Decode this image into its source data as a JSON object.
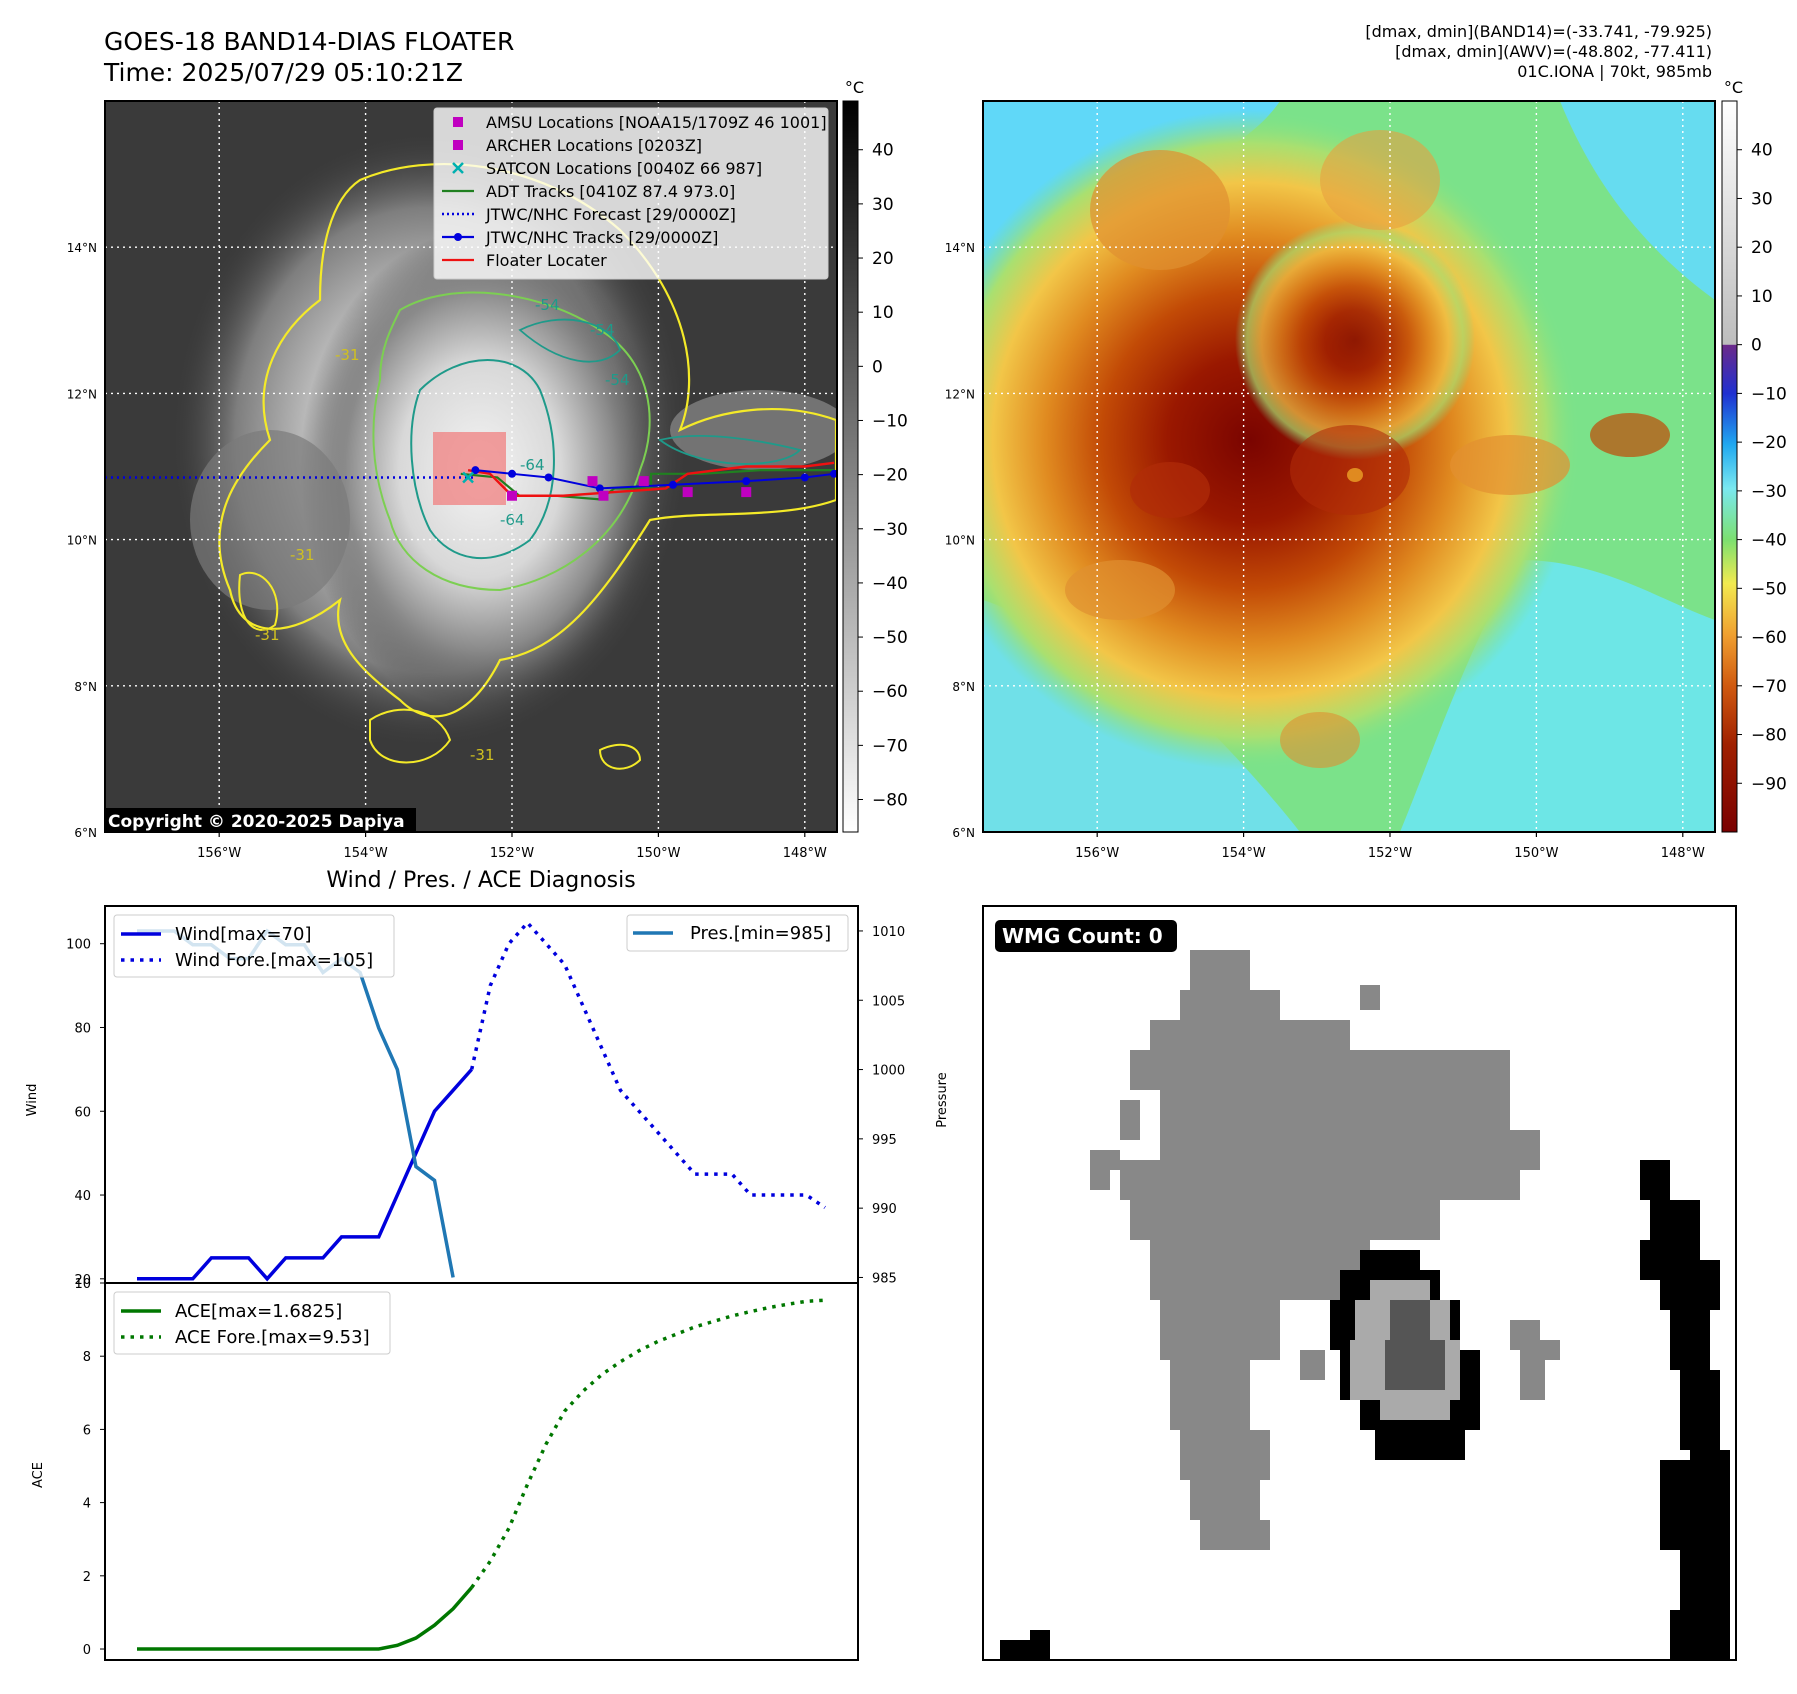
{
  "header": {
    "title": "GOES-18 BAND14-DIAS FLOATER",
    "time": "Time: 2025/07/29 05:10:21Z",
    "stat_band14": "[dmax, dmin](BAND14)=(-33.741, -79.925)",
    "stat_awv": "[dmax, dmin](AWV)=(-48.802, -77.411)",
    "storm": "01C.IONA | 70kt, 985mb"
  },
  "map": {
    "lon_ticks": [
      "156°W",
      "154°W",
      "152°W",
      "150°W",
      "148°W"
    ],
    "lat_ticks": [
      "14°N",
      "12°N",
      "10°N",
      "8°N",
      "6°N"
    ],
    "lon_values": [
      -156,
      -154,
      -152,
      -150,
      -148
    ],
    "lat_values": [
      14,
      12,
      10,
      8,
      6
    ],
    "lon_range": [
      -157.56,
      -147.56
    ],
    "lat_range": [
      6,
      16
    ],
    "copyright": "Copyright © 2020-2025 Dapiya",
    "contour_labels": [
      "-31",
      "-31",
      "-31",
      "-31",
      "-54",
      "-54",
      "-54",
      "-64",
      "-64"
    ],
    "center": {
      "lon": -152.5,
      "lat": 10.85
    },
    "colors": {
      "ir_background": "#3a3a3a",
      "contour_31": "#f4ea28",
      "contour_54": "#7ccf52",
      "contour_64": "#1f9a8a",
      "floater_box": "#f08080"
    }
  },
  "legend": {
    "items": [
      {
        "label": "AMSU Locations [NOAA15/1709Z 46 1001]",
        "marker": "square",
        "color": "#c000c0"
      },
      {
        "label": "ARCHER Locations [0203Z]",
        "marker": "square",
        "color": "#c000c0"
      },
      {
        "label": "SATCON Locations [0040Z 66 987]",
        "marker": "x",
        "color": "#00b0b0"
      },
      {
        "label": "ADT Tracks [0410Z 87.4 973.0]",
        "marker": "line",
        "color": "#208020"
      },
      {
        "label": "JTWC/NHC Forecast [29/0000Z]",
        "marker": "dotted",
        "color": "#0000dd"
      },
      {
        "label": "JTWC/NHC Tracks [29/0000Z]",
        "marker": "line-dot",
        "color": "#0000dd"
      },
      {
        "label": "Floater Locater",
        "marker": "line",
        "color": "#ee1111"
      }
    ]
  },
  "tracks": {
    "jtwc_forecast": [
      [
        -157.56,
        10.85
      ],
      [
        -152.5,
        10.85
      ]
    ],
    "jtwc_track": [
      [
        -152.5,
        10.95
      ],
      [
        -152.0,
        10.9
      ],
      [
        -151.5,
        10.85
      ],
      [
        -150.8,
        10.7
      ],
      [
        -149.8,
        10.75
      ],
      [
        -148.8,
        10.8
      ],
      [
        -148.0,
        10.85
      ],
      [
        -147.6,
        10.9
      ]
    ],
    "adt": [
      [
        -152.7,
        10.9
      ],
      [
        -152.2,
        10.85
      ],
      [
        -151.9,
        10.6
      ],
      [
        -151.4,
        10.6
      ],
      [
        -150.8,
        10.55
      ],
      [
        -150.6,
        10.7
      ],
      [
        -150.1,
        10.7
      ],
      [
        -150.1,
        10.9
      ],
      [
        -149.4,
        10.9
      ],
      [
        -148.6,
        10.95
      ],
      [
        -147.6,
        10.95
      ]
    ],
    "floater": [
      [
        -152.6,
        10.95
      ],
      [
        -152.3,
        10.9
      ],
      [
        -152.0,
        10.6
      ],
      [
        -151.3,
        10.6
      ],
      [
        -150.6,
        10.65
      ],
      [
        -149.9,
        10.7
      ],
      [
        -149.6,
        10.9
      ],
      [
        -148.8,
        11.0
      ],
      [
        -148.0,
        11.0
      ],
      [
        -147.6,
        11.05
      ]
    ],
    "amsu": [
      [
        -152.0,
        10.6
      ],
      [
        -150.9,
        10.8
      ],
      [
        -150.75,
        10.6
      ],
      [
        -150.2,
        10.8
      ],
      [
        -149.6,
        10.65
      ],
      [
        -148.8,
        10.65
      ]
    ],
    "satcon": [
      [
        -152.6,
        10.85
      ]
    ]
  },
  "colorbar_ir": {
    "unit": "°C",
    "ticks": [
      "40",
      "30",
      "20",
      "10",
      "0",
      "−10",
      "−20",
      "−30",
      "−40",
      "−50",
      "−60",
      "−70",
      "−80"
    ],
    "values": [
      40,
      30,
      20,
      10,
      0,
      -10,
      -20,
      -30,
      -40,
      -50,
      -60,
      -70,
      -80
    ],
    "range": [
      -86,
      49
    ]
  },
  "colorbar_dias": {
    "unit": "°C",
    "ticks": [
      "40",
      "30",
      "20",
      "10",
      "0",
      "−10",
      "−20",
      "−30",
      "−40",
      "−50",
      "−60",
      "−70",
      "−80",
      "−90"
    ],
    "values": [
      40,
      30,
      20,
      10,
      0,
      -10,
      -20,
      -30,
      -40,
      -50,
      -60,
      -70,
      -80,
      -90
    ],
    "range": [
      -100,
      50
    ]
  },
  "diagnosis": {
    "title": "Wind / Pres. / ACE Diagnosis"
  },
  "wmg": {
    "label": "WMG Count: 0",
    "colors": {
      "gray": "#888888",
      "light": "#aaaaaa",
      "dark": "#555555",
      "black": "#000000"
    }
  },
  "chart_data": [
    {
      "type": "line",
      "ylabel": "Wind",
      "y2label": "Pressure",
      "x_index": [
        0,
        1,
        2,
        3,
        4,
        5,
        6,
        7,
        8,
        9,
        10,
        11,
        12,
        13,
        14,
        15,
        16,
        17,
        18,
        19,
        20,
        21,
        22,
        23,
        24,
        25,
        26,
        27,
        28,
        29,
        30,
        31,
        32,
        33,
        34,
        35,
        36,
        37
      ],
      "ylim": [
        19,
        109
      ],
      "y2lim": [
        984.6,
        1011.8
      ],
      "yticks": [
        20,
        40,
        60,
        80,
        100
      ],
      "y2ticks": [
        985,
        990,
        995,
        1000,
        1005,
        1010
      ],
      "series": [
        {
          "name": "Wind[max=70]",
          "color": "#0000dd",
          "style": "solid",
          "axis": "left",
          "x": [
            0,
            1,
            2,
            3,
            4,
            5,
            6,
            7,
            8,
            9,
            10,
            11,
            12,
            13,
            14,
            15,
            16,
            17,
            18
          ],
          "values": [
            20,
            20,
            20,
            20,
            25,
            25,
            25,
            20,
            25,
            25,
            25,
            30,
            30,
            30,
            40,
            50,
            60,
            65,
            70
          ]
        },
        {
          "name": "Wind Fore.[max=105]",
          "color": "#0000dd",
          "style": "dotted",
          "axis": "left",
          "x": [
            18,
            19,
            20,
            21,
            22,
            23,
            24,
            25,
            26,
            27,
            28,
            29,
            30,
            31,
            32,
            33,
            34,
            35,
            36,
            37
          ],
          "values": [
            70,
            90,
            100,
            105,
            100,
            95,
            85,
            75,
            65,
            60,
            55,
            50,
            45,
            45,
            45,
            40,
            40,
            40,
            40,
            37
          ]
        },
        {
          "name": "Pres.[min=985]",
          "color": "#1f77b4",
          "style": "solid",
          "axis": "right",
          "x": [
            0,
            1,
            2,
            3,
            4,
            5,
            6,
            7,
            8,
            9,
            10,
            11,
            12,
            13,
            14,
            15,
            16,
            17,
            18
          ],
          "values": [
            1010,
            1010,
            1010,
            1009,
            1009,
            1008,
            1008,
            1010,
            1009,
            1009,
            1007,
            1008,
            1007,
            1003,
            1000,
            993,
            992,
            985,
            null
          ]
        }
      ]
    },
    {
      "type": "line",
      "ylabel": "ACE",
      "x_index": [
        0,
        1,
        2,
        3,
        4,
        5,
        6,
        7,
        8,
        9,
        10,
        11,
        12,
        13,
        14,
        15,
        16,
        17,
        18,
        19,
        20,
        21,
        22,
        23,
        24,
        25,
        26,
        27,
        28,
        29,
        30,
        31,
        32,
        33,
        34,
        35,
        36,
        37
      ],
      "ylim": [
        -0.3,
        10.0
      ],
      "yticks": [
        0,
        2,
        4,
        6,
        8,
        10
      ],
      "series": [
        {
          "name": "ACE[max=1.6825]",
          "color": "#007700",
          "style": "solid",
          "x": [
            0,
            1,
            2,
            3,
            4,
            5,
            6,
            7,
            8,
            9,
            10,
            11,
            12,
            13,
            14,
            15,
            16,
            17,
            18
          ],
          "values": [
            0,
            0,
            0,
            0,
            0,
            0,
            0,
            0,
            0,
            0,
            0,
            0,
            0,
            0,
            0.1,
            0.3,
            0.65,
            1.1,
            1.68
          ]
        },
        {
          "name": "ACE Fore.[max=9.53]",
          "color": "#007700",
          "style": "dotted",
          "x": [
            18,
            19,
            20,
            21,
            22,
            23,
            24,
            25,
            26,
            27,
            28,
            29,
            30,
            31,
            32,
            33,
            34,
            35,
            36,
            37
          ],
          "values": [
            1.68,
            2.4,
            3.3,
            4.5,
            5.6,
            6.5,
            7.05,
            7.5,
            7.85,
            8.15,
            8.4,
            8.6,
            8.8,
            8.95,
            9.1,
            9.22,
            9.33,
            9.42,
            9.5,
            9.53
          ]
        }
      ]
    }
  ]
}
